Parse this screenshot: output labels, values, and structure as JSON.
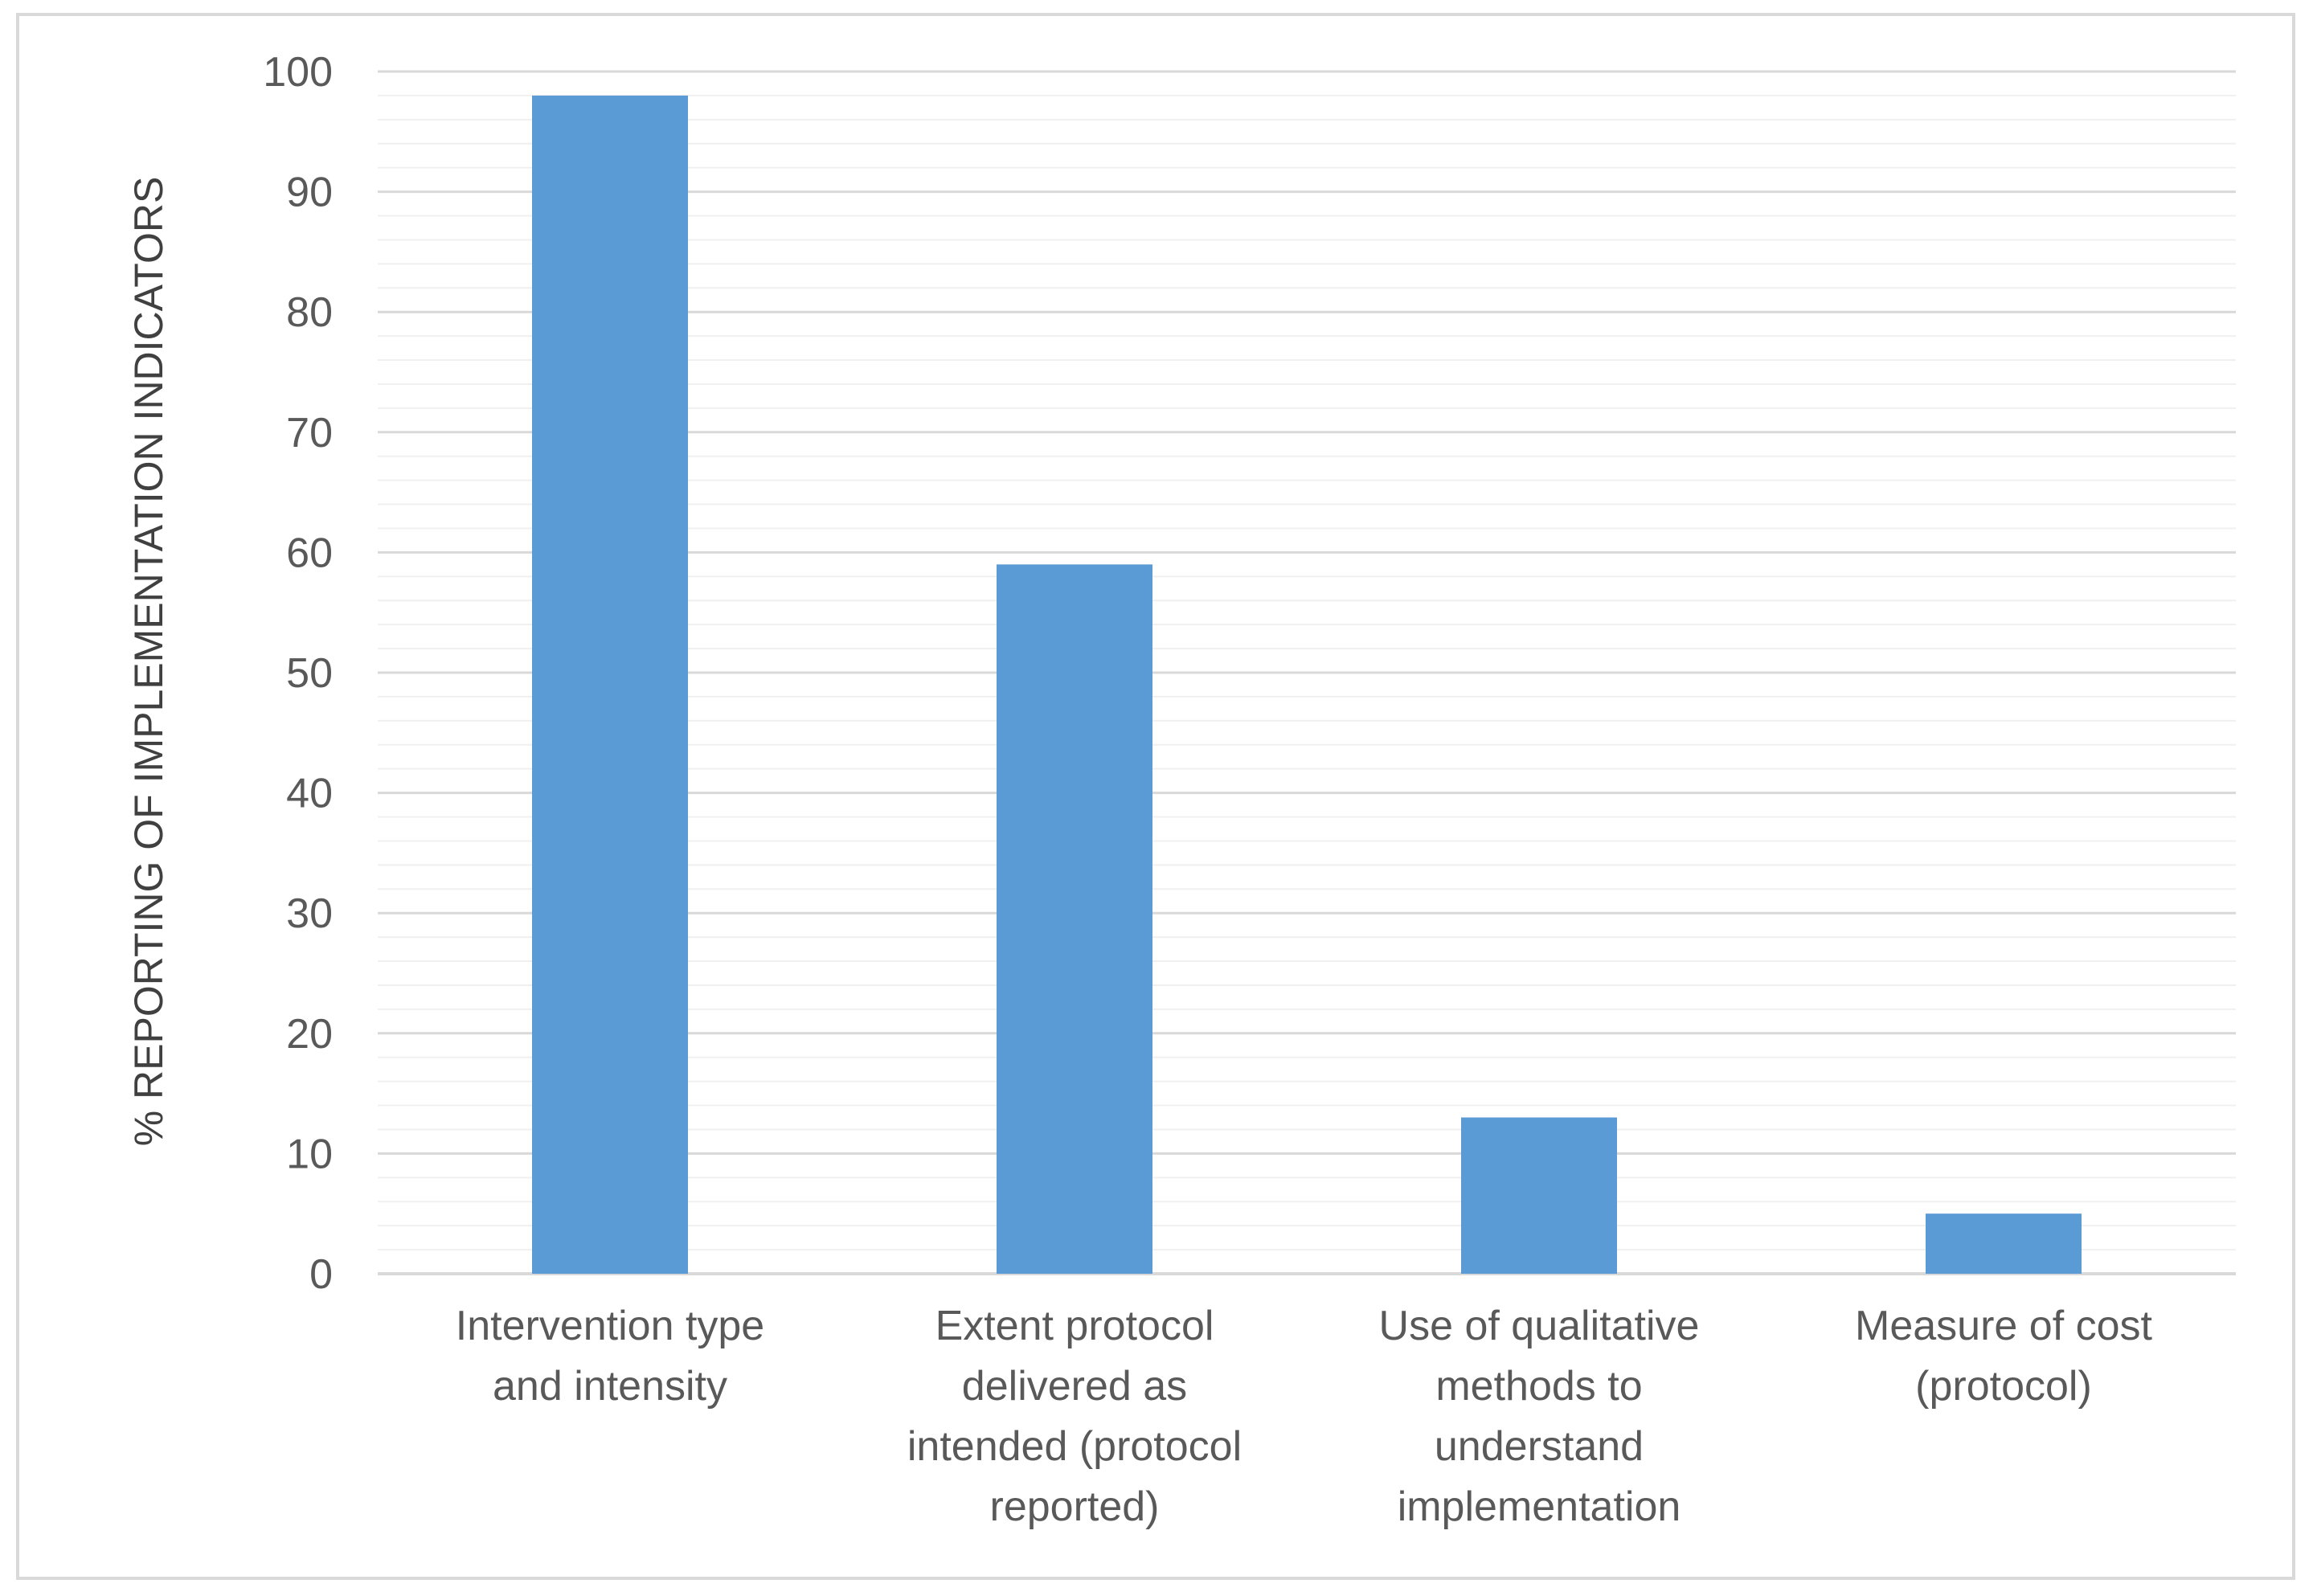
{
  "chart_data": {
    "type": "bar",
    "categories": [
      [
        "Intervention type",
        "and intensity"
      ],
      [
        "Extent protocol",
        "delivered as",
        "intended (protocol",
        "reported)"
      ],
      [
        "Use of qualitative",
        "methods to",
        "understand",
        "implementation"
      ],
      [
        "Measure of cost",
        "(protocol)"
      ]
    ],
    "values": [
      98,
      59,
      13,
      5
    ],
    "title": "",
    "xlabel": "",
    "ylabel": "% REPORTING OF IMPLEMENTATION INDICATORS",
    "ylim": [
      0,
      100
    ],
    "yticks": [
      0,
      10,
      20,
      30,
      40,
      50,
      60,
      70,
      80,
      90,
      100
    ],
    "minor_grid_step": 2,
    "grid": true,
    "legend": "none",
    "colors": {
      "bar": "#5b9bd5",
      "major_grid": "#d9d9d9",
      "minor_grid": "#f0f0f0",
      "frame": "#d9d9d9",
      "text": "#595959"
    }
  }
}
